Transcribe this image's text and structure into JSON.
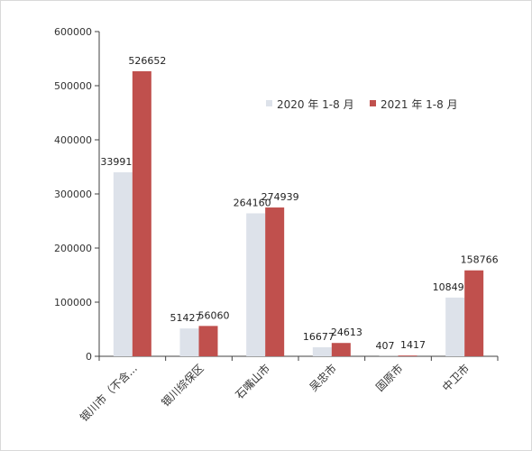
{
  "chart_data": {
    "type": "bar",
    "title": "",
    "xlabel": "",
    "ylabel": "",
    "categories": [
      "银川市（不含...",
      "银川综保区",
      "石嘴山市",
      "吴忠市",
      "固原市",
      "中卫市"
    ],
    "series": [
      {
        "name": "2020 年 1-8 月",
        "values": [
          339916,
          51427,
          264160,
          16677,
          407,
          108497
        ],
        "color": "#dde2ea"
      },
      {
        "name": "2021 年 1-8 月",
        "values": [
          526652,
          56060,
          274939,
          24613,
          1417,
          158766
        ],
        "color": "#c0504d"
      }
    ],
    "data_labels": [
      [
        "339916",
        "51427",
        "264160",
        "16677",
        "407",
        "108497"
      ],
      [
        "526652",
        "56060",
        "274939",
        "24613",
        "1417",
        "158766"
      ]
    ],
    "ylim": [
      0,
      600000
    ],
    "yticks": [
      "0",
      "100000",
      "200000",
      "300000",
      "400000",
      "500000",
      "600000"
    ],
    "legend_position": "top-right",
    "grid": false
  }
}
